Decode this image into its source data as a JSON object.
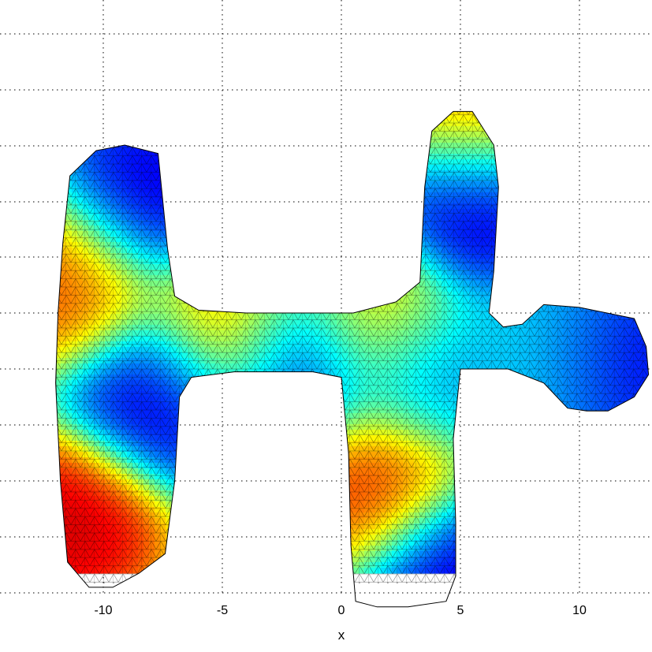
{
  "chart_data": {
    "type": "heatmap",
    "title": "",
    "xlabel": "x",
    "ylabel": "",
    "x_ticks": [
      {
        "value": -10,
        "label": "-10"
      },
      {
        "value": -5,
        "label": "-5"
      },
      {
        "value": 0,
        "label": "0"
      },
      {
        "value": 5,
        "label": "5"
      },
      {
        "value": 10,
        "label": "10"
      }
    ],
    "xlim": [
      -14.4,
      13
    ],
    "grid": true,
    "colormap": [
      "#00008f",
      "#0000ff",
      "#00ffff",
      "#7fff7f",
      "#ffff00",
      "#ff7f00",
      "#ff0000",
      "#7f0000"
    ],
    "mesh_outline": [
      [
        -11.4,
        6.9
      ],
      [
        -10.3,
        7.8
      ],
      [
        -9.1,
        8.0
      ],
      [
        -7.7,
        7.7
      ],
      [
        -7.3,
        4.3
      ],
      [
        -7.0,
        2.6
      ],
      [
        -6.0,
        2.1
      ],
      [
        -4.0,
        2.0
      ],
      [
        -1.0,
        2.0
      ],
      [
        0.5,
        2.0
      ],
      [
        2.3,
        2.4
      ],
      [
        3.3,
        3.1
      ],
      [
        3.5,
        6.5
      ],
      [
        3.8,
        8.5
      ],
      [
        4.7,
        9.2
      ],
      [
        5.5,
        9.2
      ],
      [
        6.4,
        8.0
      ],
      [
        6.6,
        6.5
      ],
      [
        6.4,
        3.5
      ],
      [
        6.2,
        2.0
      ],
      [
        6.8,
        1.5
      ],
      [
        7.6,
        1.6
      ],
      [
        8.5,
        2.3
      ],
      [
        10.0,
        2.2
      ],
      [
        12.3,
        1.8
      ],
      [
        12.8,
        0.8
      ],
      [
        12.9,
        -0.2
      ],
      [
        12.3,
        -1.0
      ],
      [
        11.2,
        -1.5
      ],
      [
        10.3,
        -1.5
      ],
      [
        9.5,
        -1.4
      ],
      [
        8.5,
        -0.5
      ],
      [
        7.0,
        0.0
      ],
      [
        5.0,
        0.0
      ],
      [
        4.7,
        -2.5
      ],
      [
        4.8,
        -5.5
      ],
      [
        4.8,
        -7.4
      ],
      [
        4.4,
        -8.3
      ],
      [
        2.8,
        -8.5
      ],
      [
        1.5,
        -8.5
      ],
      [
        0.6,
        -8.3
      ],
      [
        0.4,
        -6.3
      ],
      [
        0.3,
        -3.0
      ],
      [
        0.0,
        -0.3
      ],
      [
        -1.2,
        -0.1
      ],
      [
        -4.5,
        -0.1
      ],
      [
        -6.3,
        -0.3
      ],
      [
        -6.8,
        -1.0
      ],
      [
        -7.0,
        -4.0
      ],
      [
        -7.4,
        -6.6
      ],
      [
        -8.5,
        -7.3
      ],
      [
        -9.6,
        -7.8
      ],
      [
        -10.6,
        -7.8
      ],
      [
        -11.5,
        -6.9
      ],
      [
        -11.8,
        -4.0
      ],
      [
        -12.0,
        -0.5
      ],
      [
        -11.9,
        2.0
      ],
      [
        -11.7,
        4.5
      ]
    ],
    "field_peaks": [
      {
        "x": -11.3,
        "y": 3.2,
        "value": 0.92
      },
      {
        "x": -11.3,
        "y": -5.5,
        "value": 1.25
      },
      {
        "x": -8.3,
        "y": 6.0,
        "value": -1.0
      },
      {
        "x": -7.7,
        "y": -1.0,
        "value": -1.0
      },
      {
        "x": -4.7,
        "y": 1.5,
        "value": 0.8
      },
      {
        "x": -1.8,
        "y": 0.2,
        "value": -0.95
      },
      {
        "x": 1.3,
        "y": 1.7,
        "value": 0.65
      },
      {
        "x": 1.6,
        "y": -4.0,
        "value": 1.05
      },
      {
        "x": 3.6,
        "y": -0.3,
        "value": -0.55
      },
      {
        "x": 4.6,
        "y": -7.2,
        "value": -1.0
      },
      {
        "x": 5.6,
        "y": 9.0,
        "value": 0.8
      },
      {
        "x": 5.6,
        "y": 6.0,
        "value": -1.05
      },
      {
        "x": 9.5,
        "y": 0.5,
        "value": -0.2
      },
      {
        "x": 11.5,
        "y": 0.3,
        "value": -1.05
      }
    ],
    "colorbar": false
  }
}
